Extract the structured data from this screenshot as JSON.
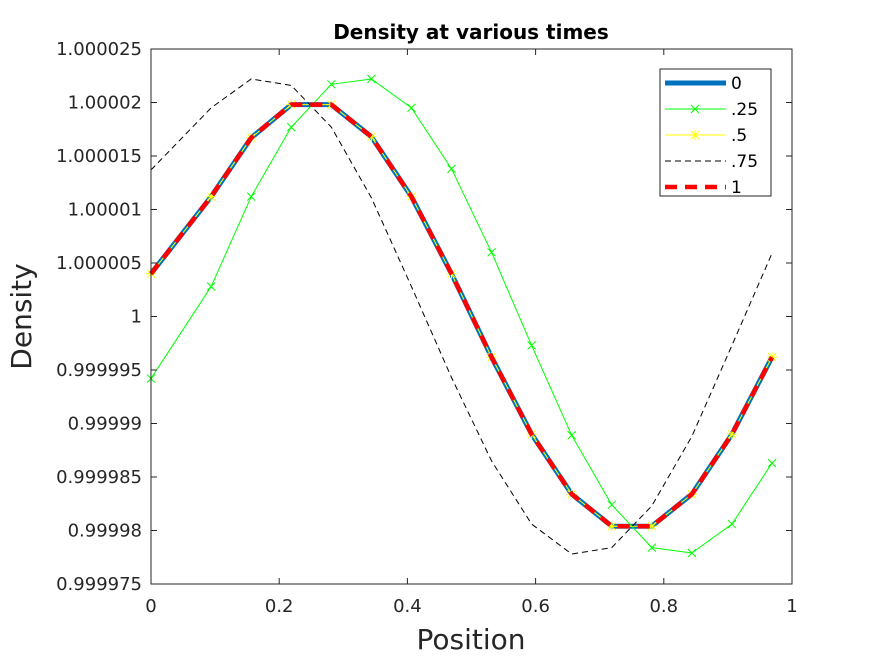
{
  "chart_data": {
    "type": "line",
    "title": "Density at various times",
    "xlabel": "Position",
    "ylabel": "Density",
    "xlim": [
      0,
      1
    ],
    "ylim": [
      0.999975,
      1.000025
    ],
    "xticks": [
      "0",
      "0.2",
      "0.4",
      "0.6",
      "0.8",
      "1"
    ],
    "xtick_values": [
      0,
      0.2,
      0.4,
      0.6,
      0.8,
      1
    ],
    "yticks": [
      "0.999975",
      "0.99998",
      "0.999985",
      "0.99999",
      "0.999995",
      "1",
      "1.000005",
      "1.00001",
      "1.000015",
      "1.00002",
      "1.000025"
    ],
    "ytick_values": [
      0.999975,
      0.99998,
      0.999985,
      0.99999,
      0.999995,
      1.0,
      1.000005,
      1.00001,
      1.000015,
      1.00002,
      1.000025
    ],
    "grid": false,
    "legend_position": "top-right",
    "x": [
      0,
      0.0938,
      0.1563,
      0.2188,
      0.2813,
      0.3438,
      0.4063,
      0.4688,
      0.5313,
      0.5938,
      0.6563,
      0.7188,
      0.7813,
      0.8438,
      0.9063,
      0.9688
    ],
    "series": [
      {
        "name": "0",
        "color": "#0072BD",
        "style": "solid-thick",
        "marker": "none",
        "values": [
          1.000004,
          1.0000112,
          1.0000167,
          1.0000198,
          1.0000198,
          1.0000168,
          1.0000112,
          1.000004,
          0.9999962,
          0.999989,
          0.9999834,
          0.9999804,
          0.9999804,
          0.9999834,
          0.999989,
          0.9999962
        ]
      },
      {
        "name": ".25",
        "color": "#00FF00",
        "style": "solid",
        "marker": "x",
        "values": [
          0.9999942,
          1.0000028,
          1.0000112,
          1.0000177,
          1.0000217,
          1.0000222,
          1.0000195,
          1.0000138,
          1.000006,
          0.9999973,
          0.9999889,
          0.9999824,
          0.9999784,
          0.9999779,
          0.9999806,
          0.9999863
        ]
      },
      {
        "name": ".5",
        "color": "#FFFF00",
        "style": "solid",
        "marker": "star",
        "values": [
          1.000004,
          1.0000112,
          1.0000167,
          1.0000198,
          1.0000198,
          1.0000168,
          1.0000112,
          1.000004,
          0.9999962,
          0.999989,
          0.9999834,
          0.9999804,
          0.9999804,
          0.9999834,
          0.999989,
          0.9999962
        ]
      },
      {
        "name": ".75",
        "color": "#000000",
        "style": "dashed",
        "marker": "none",
        "values": [
          1.0000137,
          1.0000195,
          1.0000222,
          1.0000216,
          1.0000177,
          1.0000111,
          1.0000028,
          0.9999943,
          0.9999865,
          0.9999806,
          0.9999778,
          0.9999784,
          0.9999823,
          0.9999888,
          0.9999973,
          1.0000059
        ]
      },
      {
        "name": "1",
        "color": "#FF0000",
        "style": "dashed-thick",
        "marker": "none",
        "values": [
          1.000004,
          1.0000112,
          1.0000167,
          1.0000198,
          1.0000198,
          1.0000168,
          1.0000112,
          1.000004,
          0.9999962,
          0.999989,
          0.9999834,
          0.9999804,
          0.9999804,
          0.9999834,
          0.999989,
          0.9999962
        ]
      }
    ]
  }
}
